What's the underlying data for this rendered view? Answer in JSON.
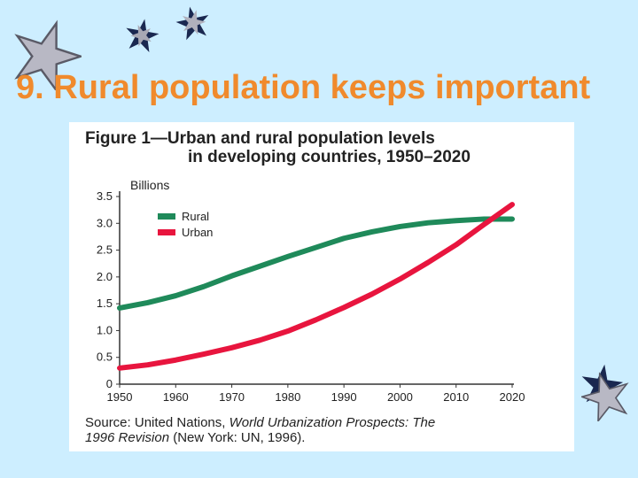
{
  "slide": {
    "title": "9. Rural population keeps important"
  },
  "figure": {
    "title_line1": "Figure 1—Urban and rural population levels",
    "title_line2": "in developing countries, 1950–2020",
    "source_prefix": "Source: United Nations, ",
    "source_italic1": "World Urbanization Prospects: The",
    "source_italic2": "1996 Revision",
    "source_suffix": " (New York: UN, 1996)."
  },
  "colors": {
    "rural": "#1f8a5a",
    "urban": "#e8153e",
    "background": "#cdeeff",
    "title": "#f08a2c"
  },
  "icons": [
    "star-icon",
    "star-icon",
    "star-icon",
    "star-icon",
    "star-icon"
  ],
  "chart_data": {
    "type": "line",
    "title": "Figure 1—Urban and rural population levels in developing countries, 1950–2020",
    "xlabel": "",
    "ylabel": "Billions",
    "xlim": [
      1950,
      2020
    ],
    "ylim": [
      0,
      3.5
    ],
    "x_ticks": [
      "1950",
      "1960",
      "1970",
      "1980",
      "1990",
      "2000",
      "2010",
      "2020"
    ],
    "y_ticks": [
      "0",
      "0.5",
      "1.0",
      "1.5",
      "2.0",
      "2.5",
      "3.0",
      "3.5"
    ],
    "legend": "top-left",
    "grid": false,
    "x": [
      1950,
      1955,
      1960,
      1965,
      1970,
      1975,
      1980,
      1985,
      1990,
      1995,
      2000,
      2005,
      2010,
      2015,
      2020
    ],
    "series": [
      {
        "name": "Rural",
        "color": "#1f8a5a",
        "values": [
          1.42,
          1.52,
          1.65,
          1.82,
          2.02,
          2.2,
          2.38,
          2.55,
          2.72,
          2.84,
          2.94,
          3.01,
          3.05,
          3.08,
          3.08
        ]
      },
      {
        "name": "Urban",
        "color": "#e8153e",
        "values": [
          0.3,
          0.36,
          0.45,
          0.56,
          0.68,
          0.82,
          0.99,
          1.2,
          1.43,
          1.68,
          1.96,
          2.27,
          2.6,
          2.98,
          3.35
        ]
      }
    ]
  }
}
